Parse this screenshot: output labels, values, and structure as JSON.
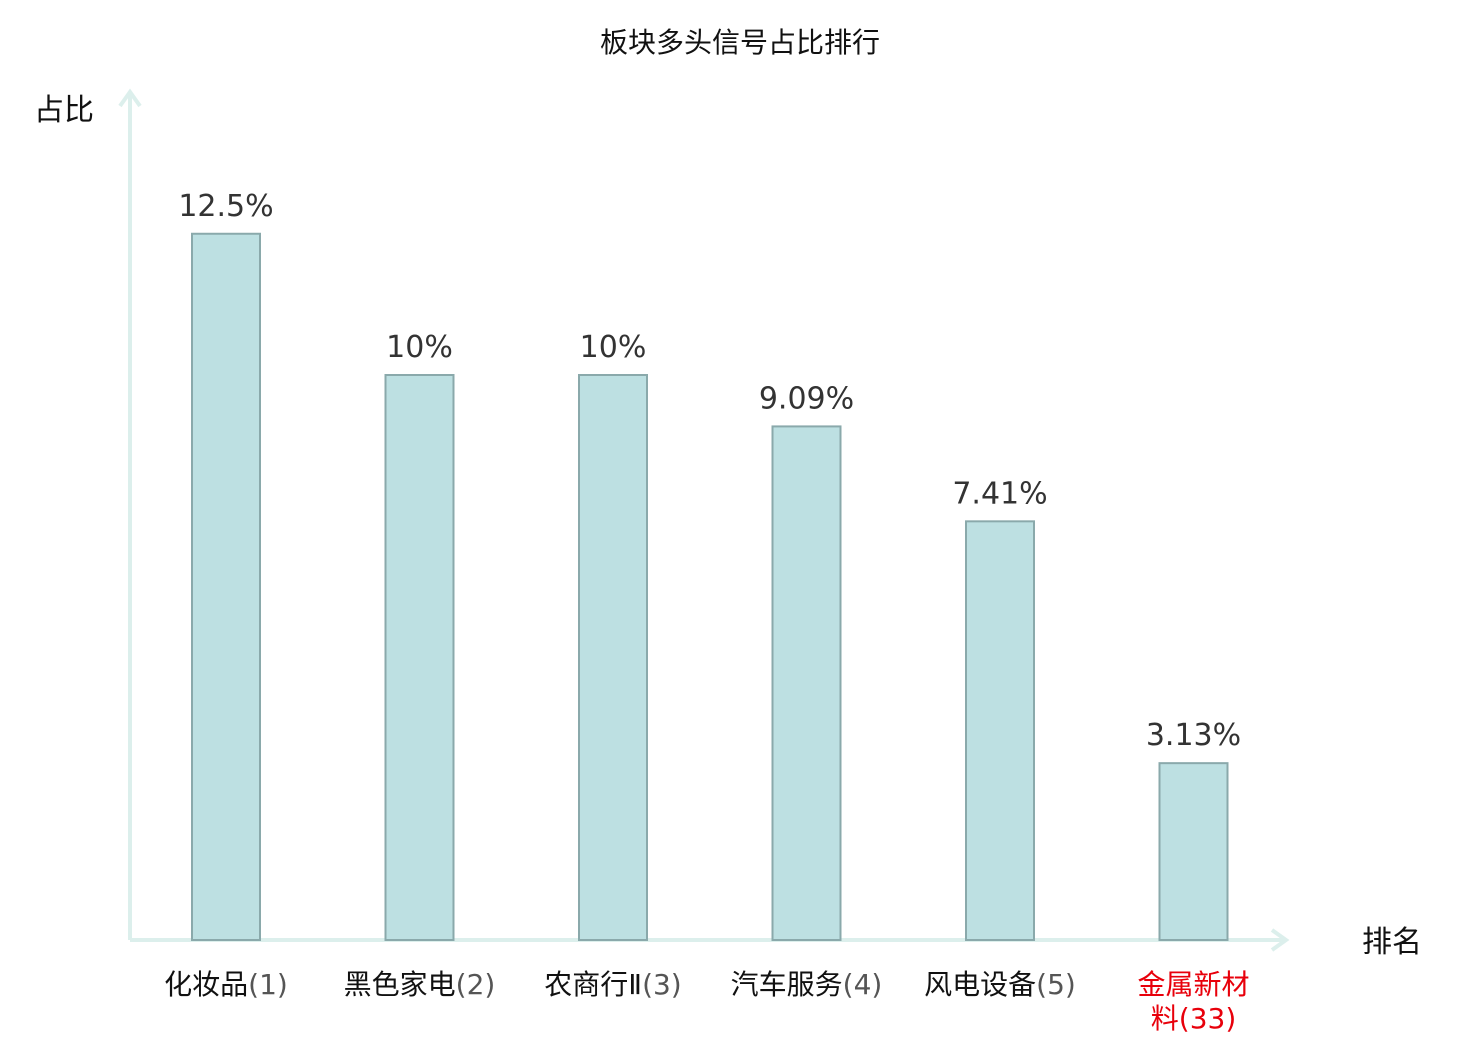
{
  "chart_data": {
    "type": "bar",
    "title": "板块多头信号占比排行",
    "ylabel": "占比",
    "xlabel": "排名",
    "categories": [
      {
        "name": "化妆品",
        "rank": "(1)",
        "highlight": false
      },
      {
        "name": "黑色家电",
        "rank": "(2)",
        "highlight": false
      },
      {
        "name": "农商行Ⅱ",
        "rank": "(3)",
        "highlight": false
      },
      {
        "name": "汽车服务",
        "rank": "(4)",
        "highlight": false
      },
      {
        "name": "风电设备",
        "rank": "(5)",
        "highlight": false
      },
      {
        "name": "金属新材料",
        "rank": "(33)",
        "highlight": true
      }
    ],
    "values": [
      12.5,
      10,
      10,
      9.09,
      7.41,
      3.13
    ],
    "value_labels": [
      "12.5%",
      "10%",
      "10%",
      "9.09%",
      "7.41%",
      "3.13%"
    ],
    "ylim": [
      0,
      15
    ],
    "grid": false,
    "colors": {
      "bar_fill": "#bde0e2",
      "bar_stroke": "#8aa9ab",
      "axis": "#dcefec",
      "highlight_text": "#e8000b",
      "normal_text": "#111111",
      "rank_text": "#555555"
    }
  }
}
